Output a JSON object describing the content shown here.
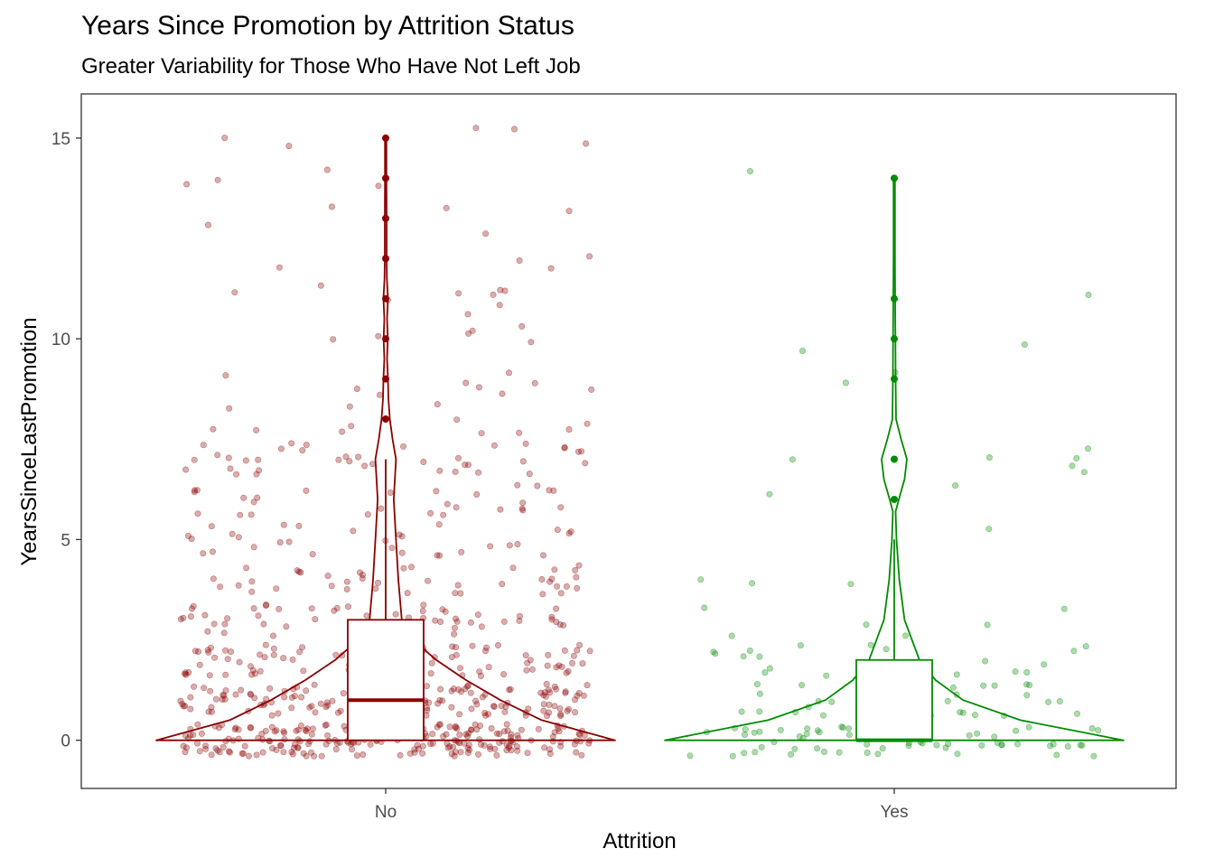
{
  "chart_data": {
    "type": "box-violin-jitter",
    "title": "Years Since Promotion by Attrition Status",
    "subtitle": "Greater Variability for Those Who Have Not Left Job",
    "xlabel": "Attrition",
    "ylabel": "YearsSinceLastPromotion",
    "categories": [
      "No",
      "Yes"
    ],
    "ylim": [
      -1.2,
      16.1
    ],
    "yticks": [
      0,
      5,
      10,
      15
    ],
    "grid": false,
    "colors": {
      "No": "#8b0000",
      "Yes": "#008b00"
    },
    "series": [
      {
        "category": "No",
        "box": {
          "min": 0,
          "q1": 0,
          "median": 1,
          "q3": 3,
          "whisker_high": 7
        },
        "outliers": [
          8,
          9,
          10,
          11,
          12,
          13,
          14,
          15
        ],
        "violin_density": [
          [
            0,
            1.0
          ],
          [
            0.5,
            0.68
          ],
          [
            1,
            0.5
          ],
          [
            1.5,
            0.35
          ],
          [
            2,
            0.22
          ],
          [
            2.5,
            0.12
          ],
          [
            3,
            0.07
          ],
          [
            4,
            0.055
          ],
          [
            5,
            0.045
          ],
          [
            6,
            0.035
          ],
          [
            7,
            0.045
          ],
          [
            7.5,
            0.03
          ],
          [
            8,
            0.018
          ],
          [
            8.5,
            0.012
          ],
          [
            9,
            0.01
          ],
          [
            9.5,
            0.006
          ],
          [
            10,
            0.009
          ],
          [
            10.5,
            0.006
          ],
          [
            11,
            0.01
          ],
          [
            11.5,
            0.005
          ],
          [
            12,
            0.004
          ],
          [
            13,
            0.004
          ],
          [
            14,
            0.003
          ],
          [
            15,
            0.003
          ]
        ],
        "jitter_profile": [
          [
            0,
            230
          ],
          [
            1,
            150
          ],
          [
            2,
            95
          ],
          [
            3,
            55
          ],
          [
            4,
            40
          ],
          [
            5,
            30
          ],
          [
            6,
            28
          ],
          [
            7,
            38
          ],
          [
            8,
            12
          ],
          [
            9,
            9
          ],
          [
            10,
            6
          ],
          [
            11,
            9
          ],
          [
            12,
            4
          ],
          [
            13,
            5
          ],
          [
            14,
            4
          ],
          [
            15,
            5
          ]
        ]
      },
      {
        "category": "Yes",
        "box": {
          "min": 0,
          "q1": 0,
          "median": 0,
          "q3": 2,
          "whisker_high": 5
        },
        "outliers": [
          6,
          7,
          9,
          10,
          11,
          14
        ],
        "violin_density": [
          [
            0,
            1.0
          ],
          [
            0.5,
            0.55
          ],
          [
            1,
            0.3
          ],
          [
            1.5,
            0.18
          ],
          [
            2,
            0.11
          ],
          [
            3,
            0.045
          ],
          [
            4,
            0.022
          ],
          [
            5,
            0.01
          ],
          [
            5.7,
            0.006
          ],
          [
            6,
            0.02
          ],
          [
            6.5,
            0.045
          ],
          [
            7,
            0.055
          ],
          [
            7.5,
            0.03
          ],
          [
            8,
            0.008
          ],
          [
            9,
            0.006
          ],
          [
            10,
            0.005
          ],
          [
            11,
            0.004
          ],
          [
            12,
            0.003
          ],
          [
            13,
            0.003
          ],
          [
            14,
            0.003
          ]
        ],
        "jitter_profile": [
          [
            0,
            60
          ],
          [
            1,
            30
          ],
          [
            2,
            20
          ],
          [
            3,
            6
          ],
          [
            4,
            3
          ],
          [
            5,
            1
          ],
          [
            6,
            2
          ],
          [
            7,
            6
          ],
          [
            9,
            2
          ],
          [
            10,
            2
          ],
          [
            11,
            1
          ],
          [
            14,
            1
          ]
        ]
      }
    ]
  }
}
